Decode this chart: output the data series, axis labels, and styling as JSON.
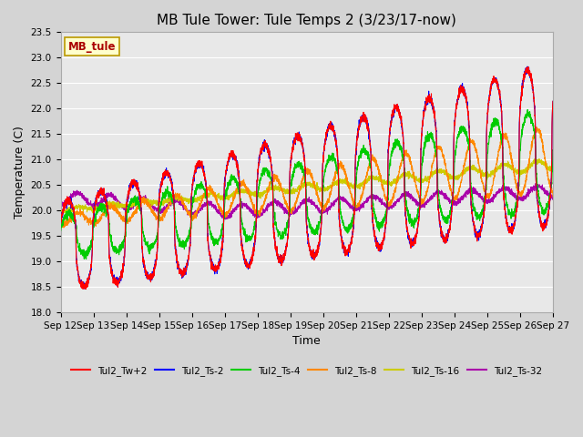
{
  "title": "MB Tule Tower: Tule Temps 2 (3/23/17-now)",
  "xlabel": "Time",
  "ylabel": "Temperature (C)",
  "ylim": [
    18.0,
    23.5
  ],
  "yticks": [
    18.0,
    18.5,
    19.0,
    19.5,
    20.0,
    20.5,
    21.0,
    21.5,
    22.0,
    22.5,
    23.0,
    23.5
  ],
  "xlim_start": 12,
  "xlim_end": 27,
  "xtick_labels": [
    "Sep 12",
    "Sep 13",
    "Sep 14",
    "Sep 15",
    "Sep 16",
    "Sep 17",
    "Sep 18",
    "Sep 19",
    "Sep 20",
    "Sep 21",
    "Sep 22",
    "Sep 23",
    "Sep 24",
    "Sep 25",
    "Sep 26",
    "Sep 27"
  ],
  "xtick_positions": [
    12,
    13,
    14,
    15,
    16,
    17,
    18,
    19,
    20,
    21,
    22,
    23,
    24,
    25,
    26,
    27
  ],
  "series_colors": {
    "Tul2_Tw+2": "#ff0000",
    "Tul2_Ts-2": "#0000ff",
    "Tul2_Ts-4": "#00cc00",
    "Tul2_Ts-8": "#ff8800",
    "Tul2_Ts-16": "#cccc00",
    "Tul2_Ts-32": "#aa00aa"
  },
  "legend_labels": [
    "Tul2_Tw+2",
    "Tul2_Ts-2",
    "Tul2_Ts-4",
    "Tul2_Ts-8",
    "Tul2_Ts-16",
    "Tul2_Ts-32"
  ],
  "watermark_text": "MB_tule",
  "watermark_bg": "#ffffcc",
  "watermark_fg": "#aa0000",
  "fig_bg": "#d4d4d4",
  "plot_bg": "#e8e8e8",
  "grid_color": "#ffffff",
  "title_fontsize": 11,
  "axis_fontsize": 9,
  "tick_fontsize": 7.5
}
